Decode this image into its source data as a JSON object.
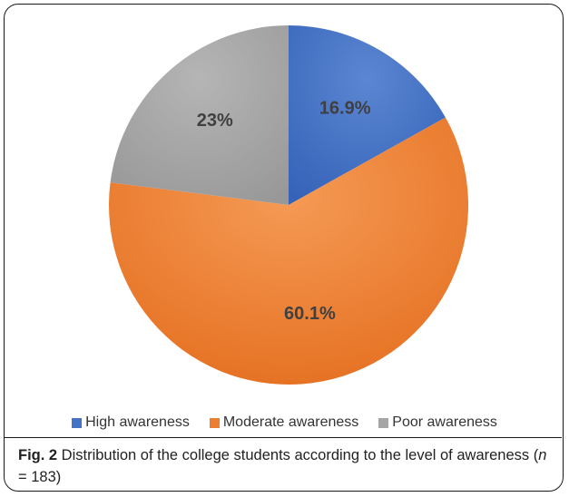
{
  "chart_data": {
    "type": "pie",
    "categories": [
      "High awareness",
      "Moderate awareness",
      "Poor awareness"
    ],
    "values": [
      16.9,
      60.1,
      23.0
    ],
    "data_labels": [
      "16.9%",
      "60.1%",
      "23%"
    ],
    "colors": [
      "#4472c4",
      "#ed7d31",
      "#a5a5a5"
    ],
    "start_angle": "12 o'clock, clockwise",
    "legend_position": "bottom"
  },
  "caption": {
    "figure_label": "Fig. 2",
    "text_before_n": " Distribution of the college students according to the level of awareness (",
    "n_symbol": "n",
    "text_after_n": " = 183)"
  }
}
